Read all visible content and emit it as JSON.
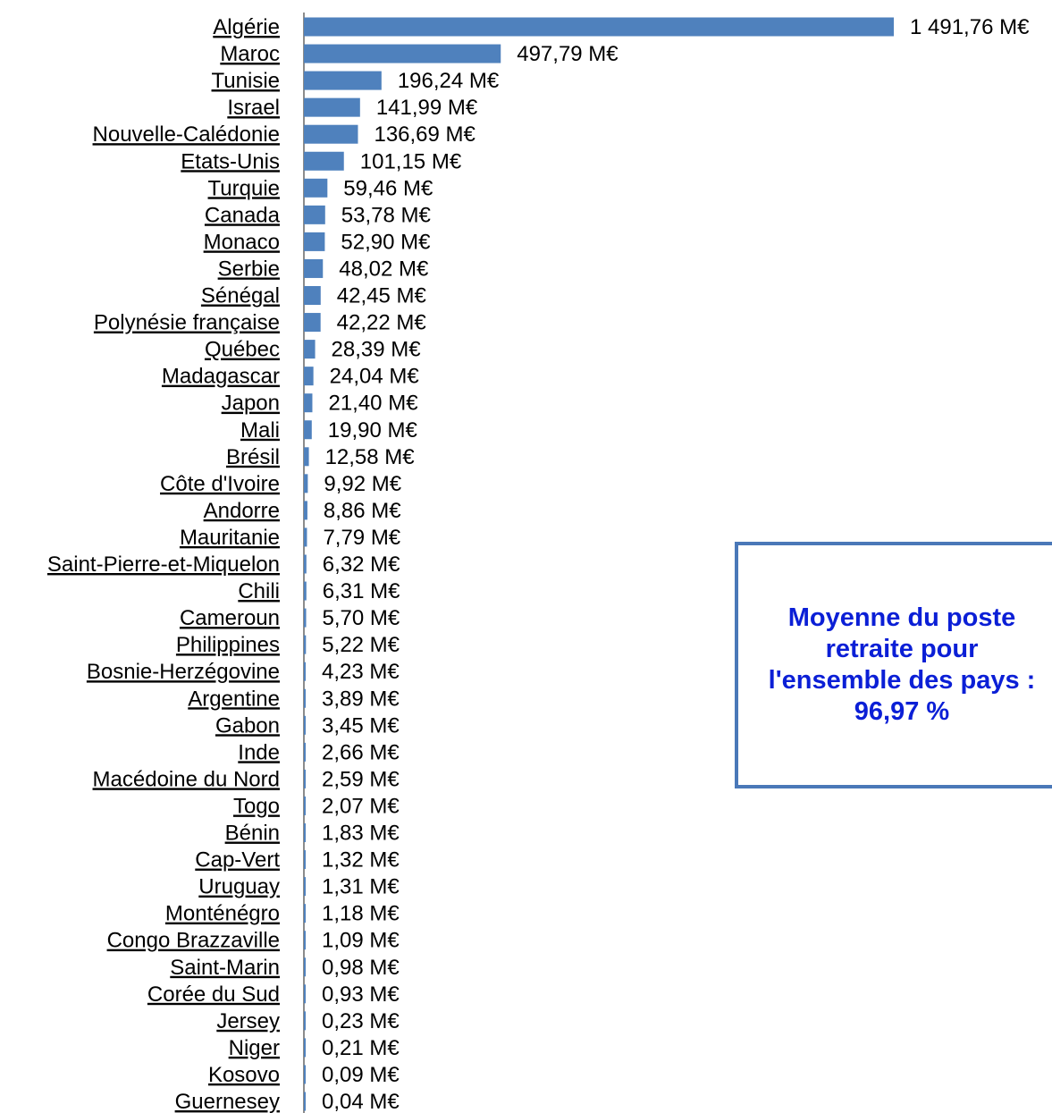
{
  "chart_data": {
    "type": "bar",
    "orientation": "horizontal",
    "title": "",
    "xlabel": "",
    "ylabel": "",
    "unit_suffix": " M€",
    "bar_color": "#4f81bd",
    "categories": [
      "Algérie",
      "Maroc",
      "Tunisie",
      "Israel",
      "Nouvelle-Calédonie",
      "Etats-Unis",
      "Turquie",
      "Canada",
      "Monaco",
      "Serbie",
      "Sénégal",
      "Polynésie française",
      "Québec",
      "Madagascar",
      "Japon",
      "Mali",
      "Brésil",
      "Côte d'Ivoire",
      "Andorre",
      "Mauritanie",
      "Saint-Pierre-et-Miquelon",
      "Chili",
      "Cameroun",
      "Philippines",
      "Bosnie-Herzégovine",
      "Argentine",
      "Gabon",
      "Inde",
      "Macédoine du Nord",
      "Togo",
      "Bénin",
      "Cap-Vert",
      "Uruguay",
      "Monténégro",
      "Congo Brazzaville",
      "Saint-Marin",
      "Corée du Sud",
      "Jersey",
      "Niger",
      "Kosovo",
      "Guernesey"
    ],
    "values": [
      1491.76,
      497.79,
      196.24,
      141.99,
      136.69,
      101.15,
      59.46,
      53.78,
      52.9,
      48.02,
      42.45,
      42.22,
      28.39,
      24.04,
      21.4,
      19.9,
      12.58,
      9.92,
      8.86,
      7.79,
      6.32,
      6.31,
      5.7,
      5.22,
      4.23,
      3.89,
      3.45,
      2.66,
      2.59,
      2.07,
      1.83,
      1.32,
      1.31,
      1.18,
      1.09,
      0.98,
      0.93,
      0.23,
      0.21,
      0.09,
      0.04
    ],
    "value_labels": [
      "1 491,76  M€",
      "497,79 M€",
      "196,24 M€",
      "141,99 M€",
      "136,69 M€",
      "101,15 M€",
      "59,46 M€",
      "53,78 M€",
      "52,90 M€",
      "48,02 M€",
      "42,45 M€",
      "42,22 M€",
      "28,39 M€",
      "24,04 M€",
      "21,40 M€",
      "19,90 M€",
      "12,58 M€",
      "9,92 M€",
      "8,86 M€",
      "7,79 M€",
      "6,32 M€",
      "6,31 M€",
      "5,70 M€",
      "5,22 M€",
      "4,23 M€",
      "3,89 M€",
      "3,45 M€",
      "2,66 M€",
      "2,59 M€",
      "2,07 M€",
      "1,83 M€",
      "1,32 M€",
      "1,31 M€",
      "1,18 M€",
      "1,09 M€",
      "0,98 M€",
      "0,93 M€",
      "0,23 M€",
      "0,21 M€",
      "0,09 M€",
      "0,04 M€"
    ],
    "xlim": [
      0,
      1491.76
    ],
    "grid": false,
    "legend": "none"
  },
  "info_box": {
    "text": "Moyenne du poste\nretraite pour\nl'ensemble des pays :\n96,97 %",
    "text_color": "#0b1fd6",
    "border_color": "#4a78b8"
  }
}
